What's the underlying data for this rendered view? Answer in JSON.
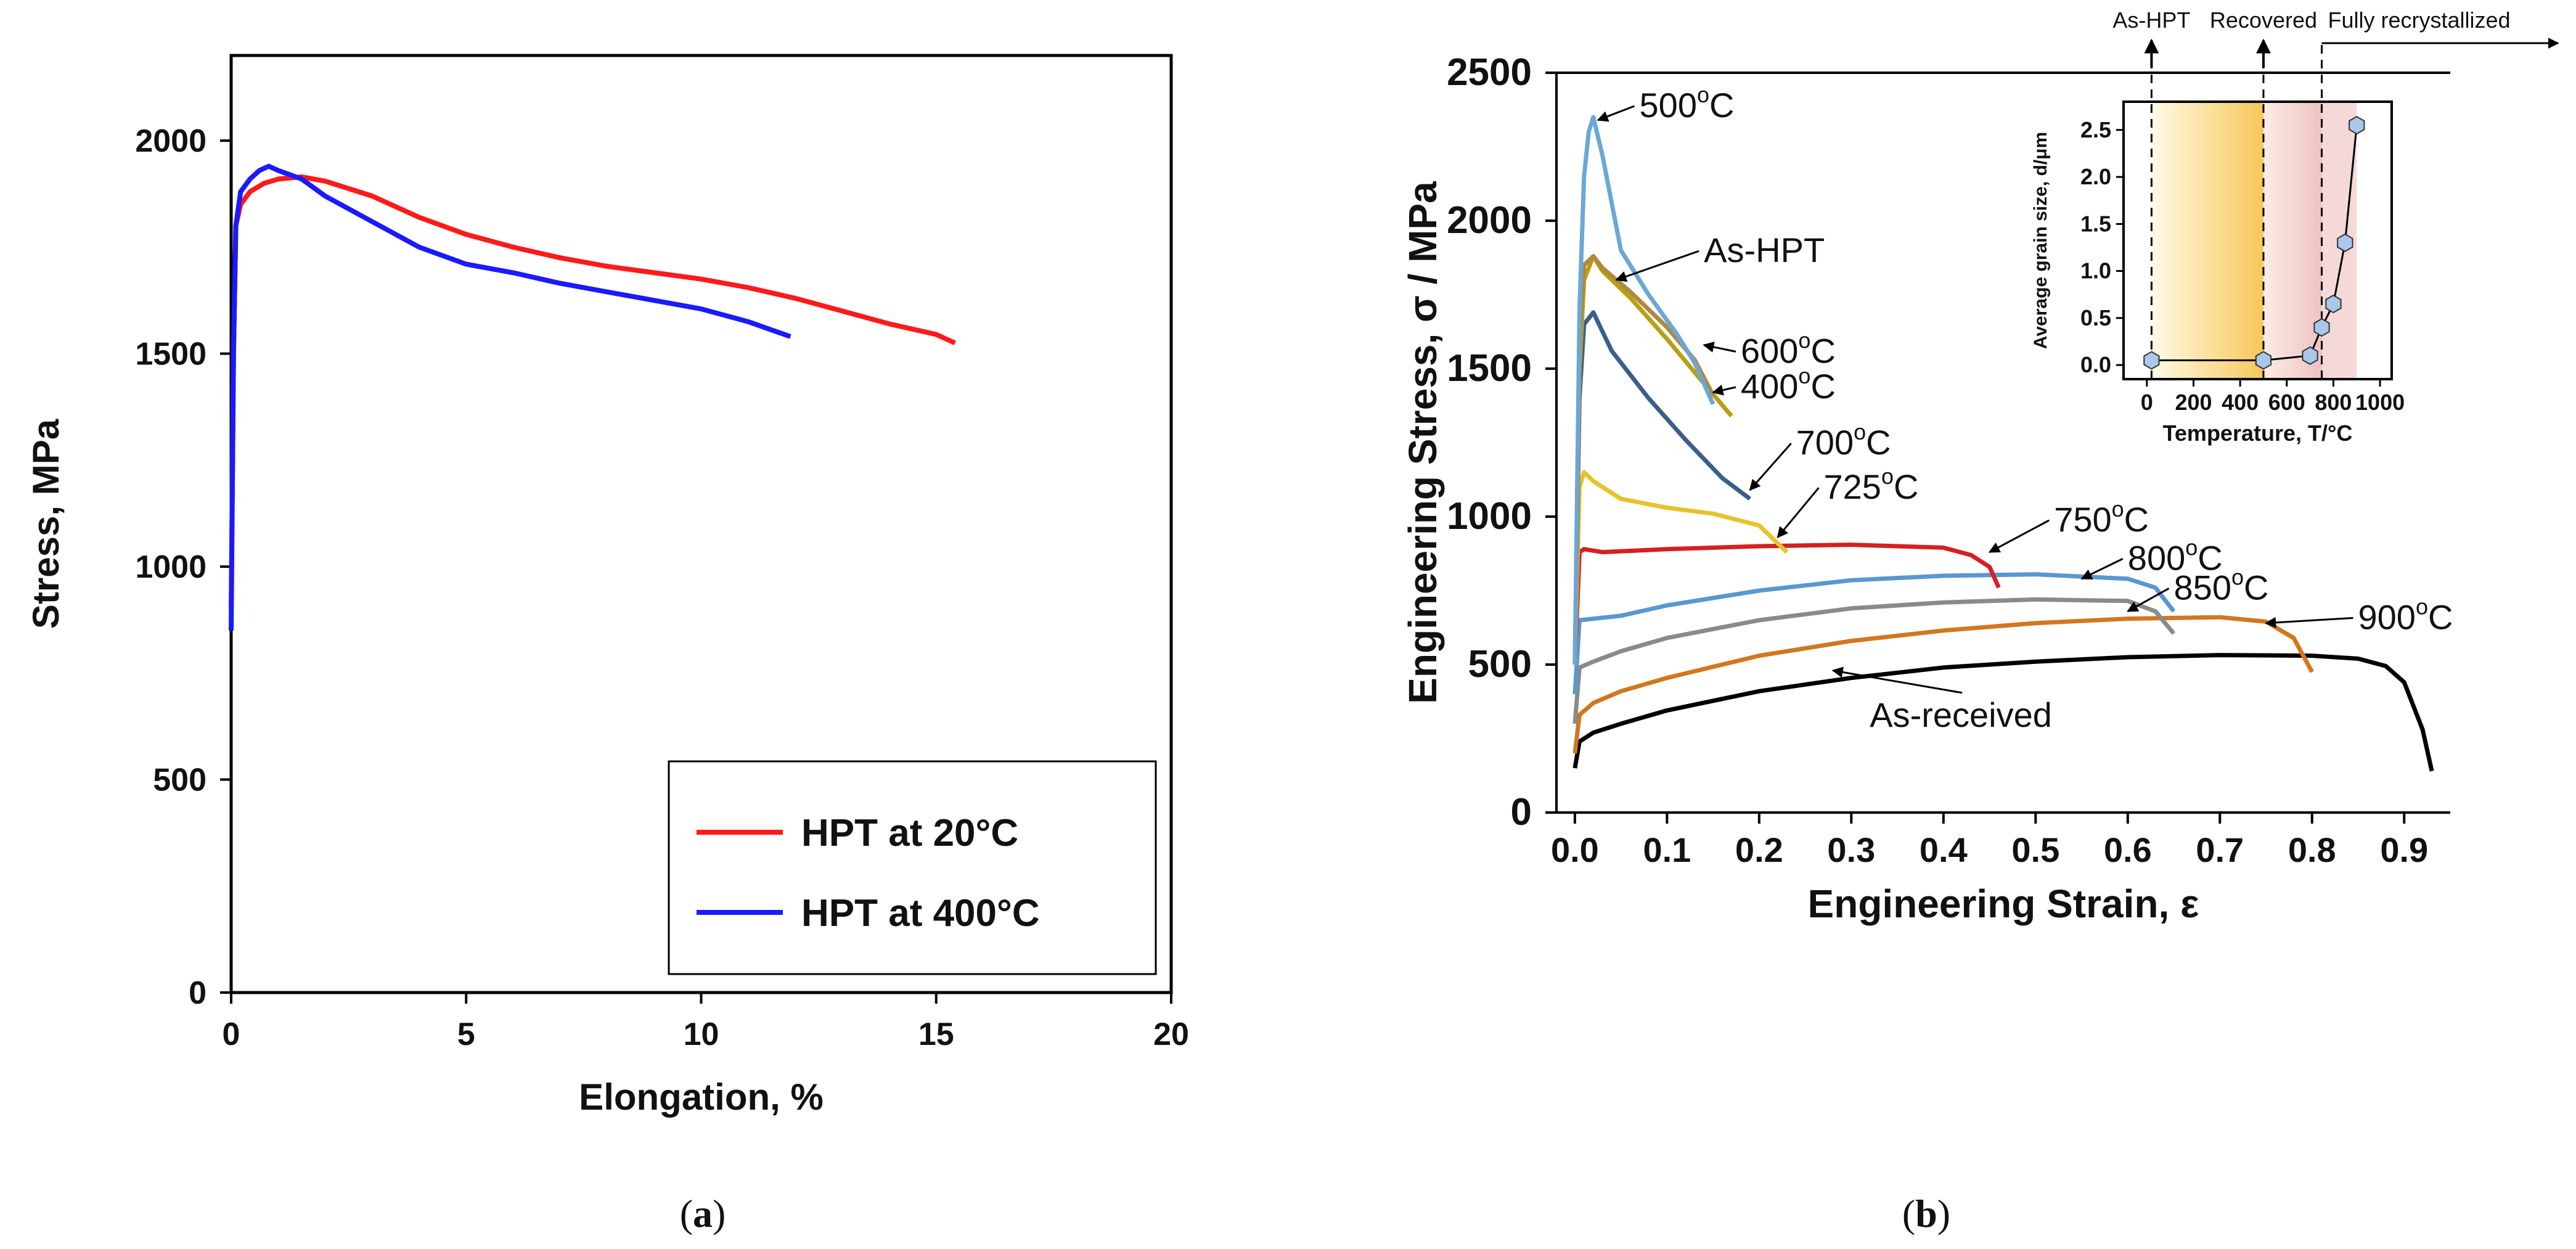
{
  "panels": [
    {
      "label_a": "(",
      "letter": "a",
      "label_b": ")"
    },
    {
      "label_a": "(",
      "letter": "b",
      "label_b": ")"
    }
  ],
  "chart_data": [
    {
      "type": "line",
      "xlabel": "Elongation, %",
      "ylabel": "Stress, MPa",
      "xlim": [
        0,
        20
      ],
      "ylim": [
        0,
        2200
      ],
      "xticks": [
        0,
        5,
        10,
        15,
        20
      ],
      "yticks": [
        0,
        500,
        1000,
        1500,
        2000
      ],
      "grid": false,
      "legend": "bottom-right",
      "series": [
        {
          "name": "HPT at 20°C",
          "color": "#ff1a1a",
          "x": [
            0.0,
            0.05,
            0.1,
            0.2,
            0.4,
            0.7,
            1.0,
            1.5,
            2.0,
            3.0,
            4.0,
            5.0,
            6.0,
            7.0,
            8.0,
            9.0,
            10.0,
            11.0,
            12.0,
            13.0,
            14.0,
            15.0,
            15.4
          ],
          "y": [
            900,
            1500,
            1800,
            1850,
            1880,
            1900,
            1910,
            1915,
            1905,
            1870,
            1820,
            1780,
            1750,
            1725,
            1705,
            1690,
            1675,
            1655,
            1630,
            1600,
            1570,
            1545,
            1525
          ]
        },
        {
          "name": "HPT  at 400°C",
          "color": "#1a1aff",
          "x": [
            0.0,
            0.05,
            0.1,
            0.2,
            0.4,
            0.6,
            0.8,
            1.0,
            1.5,
            2.0,
            3.0,
            4.0,
            5.0,
            6.0,
            7.0,
            8.0,
            9.0,
            10.0,
            11.0,
            11.9
          ],
          "y": [
            850,
            1500,
            1800,
            1880,
            1910,
            1930,
            1940,
            1930,
            1910,
            1870,
            1810,
            1750,
            1710,
            1690,
            1665,
            1645,
            1625,
            1605,
            1575,
            1540
          ]
        }
      ]
    },
    {
      "type": "line",
      "xlabel": "Engineering Strain, ε",
      "ylabel": "Engineering Stress, σ / MPa",
      "xlim": [
        -0.02,
        0.95
      ],
      "ylim": [
        0,
        2500
      ],
      "xticks": [
        0.0,
        0.1,
        0.2,
        0.3,
        0.4,
        0.5,
        0.6,
        0.7,
        0.8,
        0.9
      ],
      "yticks": [
        0,
        500,
        1000,
        1500,
        2000,
        2500
      ],
      "xtick_labels": [
        "0.0",
        "0.1",
        "0.2",
        "0.3",
        "0.4",
        "0.5",
        "0.6",
        "0.7",
        "0.8",
        "0.9"
      ],
      "grid": false,
      "series": [
        {
          "name": "As-received",
          "color": "#000000",
          "x": [
            0.0,
            0.005,
            0.02,
            0.05,
            0.1,
            0.2,
            0.3,
            0.4,
            0.5,
            0.6,
            0.7,
            0.8,
            0.85,
            0.88,
            0.9,
            0.92,
            0.93
          ],
          "y": [
            150,
            240,
            270,
            300,
            345,
            410,
            455,
            490,
            510,
            525,
            532,
            530,
            520,
            495,
            440,
            280,
            140
          ]
        },
        {
          "name": "900°C",
          "color": "#d2771f",
          "x": [
            0.0,
            0.005,
            0.02,
            0.05,
            0.1,
            0.2,
            0.3,
            0.4,
            0.5,
            0.6,
            0.7,
            0.75,
            0.78,
            0.8
          ],
          "y": [
            200,
            330,
            370,
            410,
            455,
            530,
            580,
            615,
            640,
            655,
            660,
            645,
            590,
            475
          ]
        },
        {
          "name": "850°C",
          "color": "#8a8a8a",
          "x": [
            0.0,
            0.005,
            0.02,
            0.05,
            0.1,
            0.2,
            0.3,
            0.4,
            0.5,
            0.6,
            0.63,
            0.65
          ],
          "y": [
            300,
            490,
            510,
            545,
            590,
            650,
            690,
            710,
            720,
            715,
            680,
            605
          ]
        },
        {
          "name": "800°C",
          "color": "#5a97cf",
          "x": [
            0.0,
            0.005,
            0.02,
            0.05,
            0.1,
            0.2,
            0.3,
            0.4,
            0.5,
            0.6,
            0.63,
            0.65
          ],
          "y": [
            400,
            650,
            655,
            665,
            700,
            750,
            785,
            800,
            805,
            790,
            760,
            680
          ]
        },
        {
          "name": "750°C",
          "color": "#d62020",
          "x": [
            0.0,
            0.005,
            0.01,
            0.03,
            0.1,
            0.2,
            0.3,
            0.4,
            0.43,
            0.45,
            0.46
          ],
          "y": [
            500,
            880,
            890,
            880,
            890,
            900,
            905,
            895,
            870,
            830,
            760
          ]
        },
        {
          "name": "725°C",
          "color": "#e8c22a",
          "x": [
            0.0,
            0.005,
            0.01,
            0.02,
            0.05,
            0.1,
            0.15,
            0.2,
            0.23
          ],
          "y": [
            500,
            1100,
            1150,
            1120,
            1060,
            1030,
            1010,
            970,
            880
          ]
        },
        {
          "name": "700°C",
          "color": "#3b5f8a",
          "x": [
            0.0,
            0.005,
            0.01,
            0.02,
            0.04,
            0.08,
            0.12,
            0.16,
            0.19
          ],
          "y": [
            500,
            1400,
            1650,
            1690,
            1560,
            1400,
            1260,
            1130,
            1060
          ]
        },
        {
          "name": "400°C",
          "color": "#b8a016",
          "x": [
            0.0,
            0.005,
            0.01,
            0.02,
            0.03,
            0.06,
            0.1,
            0.14,
            0.17
          ],
          "y": [
            500,
            1500,
            1800,
            1880,
            1830,
            1740,
            1600,
            1450,
            1340
          ]
        },
        {
          "name": "600°C",
          "color": "#b0893a",
          "x": [
            0.0,
            0.005,
            0.01,
            0.02,
            0.03,
            0.06,
            0.1,
            0.13,
            0.15
          ],
          "y": [
            500,
            1600,
            1850,
            1880,
            1840,
            1760,
            1640,
            1530,
            1410
          ]
        },
        {
          "name": "500°C",
          "color": "#6ba7d6",
          "x": [
            0.0,
            0.005,
            0.01,
            0.015,
            0.02,
            0.03,
            0.05,
            0.08,
            0.11,
            0.13,
            0.15
          ],
          "y": [
            500,
            1700,
            2150,
            2300,
            2350,
            2220,
            1900,
            1750,
            1620,
            1520,
            1380
          ]
        }
      ],
      "annotations": [
        {
          "text": "500",
          "sup": "o",
          "tail": "C",
          "x": 0.07,
          "y": 2350
        },
        {
          "text": "As-HPT",
          "sup": "",
          "tail": "",
          "x": 0.14,
          "y": 1860
        },
        {
          "text": "600",
          "sup": "o",
          "tail": "C",
          "x": 0.18,
          "y": 1520
        },
        {
          "text": "400",
          "sup": "o",
          "tail": "C",
          "x": 0.18,
          "y": 1400
        },
        {
          "text": "700",
          "sup": "o",
          "tail": "C",
          "x": 0.24,
          "y": 1210
        },
        {
          "text": "725",
          "sup": "o",
          "tail": "C",
          "x": 0.27,
          "y": 1060
        },
        {
          "text": "750",
          "sup": "o",
          "tail": "C",
          "x": 0.52,
          "y": 950
        },
        {
          "text": "800",
          "sup": "o",
          "tail": "C",
          "x": 0.6,
          "y": 820
        },
        {
          "text": "850",
          "sup": "o",
          "tail": "C",
          "x": 0.65,
          "y": 720
        },
        {
          "text": "900",
          "sup": "o",
          "tail": "C",
          "x": 0.85,
          "y": 620
        },
        {
          "text": "As-received",
          "sup": "",
          "tail": "",
          "x": 0.32,
          "y": 290
        }
      ],
      "inset": {
        "xlabel": "Temperature, T/°C",
        "ylabel": "Average grain size, d/μm",
        "xlim": [
          -100,
          1050
        ],
        "ylim": [
          -0.15,
          2.8
        ],
        "xticks": [
          0,
          200,
          400,
          600,
          800,
          1000
        ],
        "yticks": [
          0.0,
          0.5,
          1.0,
          1.5,
          2.0,
          2.5
        ],
        "ytick_labels": [
          "0.0",
          "0.5",
          "1.0",
          "1.5",
          "2.0",
          "2.5"
        ],
        "x": [
          20,
          500,
          700,
          750,
          800,
          850,
          900
        ],
        "y": [
          0.05,
          0.05,
          0.1,
          0.4,
          0.65,
          1.3,
          2.55
        ],
        "regions": [
          {
            "label": "As-HPT",
            "x": 20
          },
          {
            "label": "Recovered",
            "x": 500
          },
          {
            "label": "Fully recrystallized",
            "x": 750
          }
        ]
      }
    }
  ]
}
